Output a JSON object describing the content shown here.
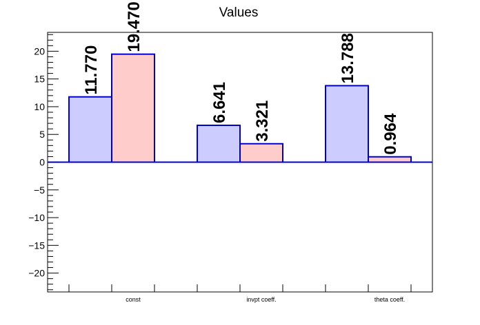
{
  "chart_data": {
    "type": "bar",
    "title": "Values",
    "categories": [
      "const",
      "invpt coeff.",
      "theta coeff."
    ],
    "series": [
      {
        "values": [
          11.77,
          6.641,
          13.788
        ],
        "labels": [
          "11.770",
          "6.641",
          "13.788"
        ],
        "fill": "#ccccff",
        "stroke": "#0000cc"
      },
      {
        "values": [
          19.47,
          3.321,
          0.964
        ],
        "labels": [
          "19.470",
          "3.321",
          "0.964"
        ],
        "fill": "#ffcccc",
        "stroke": "#0000cc"
      }
    ],
    "ylim": [
      -23.4,
      23.4
    ],
    "yticks": [
      -20,
      -15,
      -10,
      -5,
      0,
      5,
      10,
      15,
      20
    ],
    "ytick_labels": [
      "−20",
      "−15",
      "−10",
      "−5",
      "0",
      "5",
      "10",
      "15",
      "20"
    ],
    "grid": false,
    "legend": "none"
  }
}
